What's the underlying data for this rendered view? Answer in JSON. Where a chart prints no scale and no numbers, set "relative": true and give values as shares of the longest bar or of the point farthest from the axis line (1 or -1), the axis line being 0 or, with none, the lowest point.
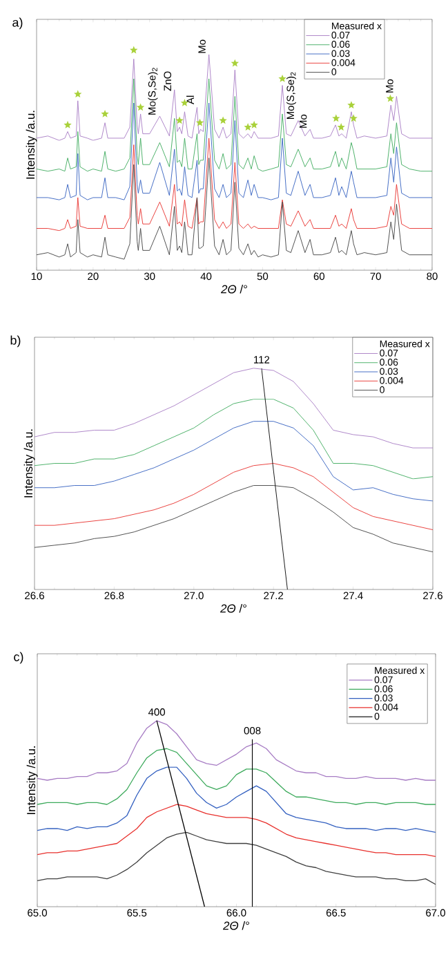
{
  "chart_data": [
    {
      "type": "line",
      "title": "a)",
      "xlabel": "*2Θ* /°",
      "ylabel": "Intensity /a.u.",
      "legend_title": "Measured x",
      "legend": "top right",
      "relative": true,
      "xlim": [
        10,
        80
      ],
      "xticks": [
        10,
        20,
        30,
        40,
        50,
        60,
        70,
        80
      ],
      "x": [
        10,
        12,
        14,
        15,
        15.5,
        16,
        17,
        17.3,
        17.7,
        19,
        20,
        21.5,
        22.1,
        22.6,
        24,
        25.5,
        26.5,
        27.2,
        27.8,
        28.0,
        28.4,
        28.8,
        30,
        31.8,
        33.5,
        34.4,
        34.9,
        35.3,
        35.7,
        36.2,
        36.8,
        37.5,
        38.4,
        38.7,
        39.0,
        39.5,
        40.5,
        41.5,
        42.3,
        43.0,
        43.6,
        44.4,
        45.1,
        45.8,
        46.6,
        47.4,
        48.0,
        48.5,
        49.2,
        50,
        51.5,
        52.8,
        53.5,
        54.2,
        55,
        56.3,
        57.5,
        58.4,
        59,
        60.5,
        62.0,
        62.9,
        63.5,
        64.0,
        64.8,
        65.7,
        66.1,
        66.7,
        68,
        70,
        72.0,
        72.7,
        73.2,
        73.7,
        74.6,
        76,
        78,
        80
      ],
      "series": [
        {
          "name": "0.07",
          "color": "#a77cc4",
          "values": [
            0.6,
            0.61,
            0.59,
            0.6,
            0.63,
            0.6,
            0.61,
            0.77,
            0.61,
            0.6,
            0.59,
            0.6,
            0.67,
            0.6,
            0.6,
            0.6,
            0.65,
            0.96,
            0.66,
            0.62,
            0.71,
            0.62,
            0.62,
            0.7,
            0.61,
            0.82,
            0.63,
            0.65,
            0.62,
            0.72,
            0.61,
            0.6,
            0.74,
            0.62,
            0.64,
            0.63,
            0.98,
            0.64,
            0.6,
            0.65,
            0.6,
            0.62,
            0.91,
            0.62,
            0.6,
            0.62,
            0.6,
            0.63,
            0.6,
            0.6,
            0.6,
            0.61,
            0.84,
            0.62,
            0.61,
            0.68,
            0.61,
            0.64,
            0.6,
            0.6,
            0.61,
            0.66,
            0.61,
            0.62,
            0.6,
            0.72,
            0.66,
            0.6,
            0.61,
            0.6,
            0.61,
            0.75,
            0.68,
            0.79,
            0.62,
            0.6,
            0.6,
            0.6
          ]
        },
        {
          "name": "0.06",
          "color": "#3daa5c",
          "values": [
            0.46,
            0.45,
            0.46,
            0.45,
            0.51,
            0.46,
            0.47,
            0.63,
            0.47,
            0.45,
            0.46,
            0.45,
            0.54,
            0.46,
            0.45,
            0.46,
            0.51,
            0.87,
            0.52,
            0.48,
            0.6,
            0.48,
            0.48,
            0.58,
            0.47,
            0.69,
            0.49,
            0.5,
            0.47,
            0.6,
            0.46,
            0.46,
            0.62,
            0.48,
            0.5,
            0.5,
            0.87,
            0.5,
            0.46,
            0.53,
            0.46,
            0.48,
            0.79,
            0.48,
            0.46,
            0.51,
            0.46,
            0.52,
            0.46,
            0.45,
            0.46,
            0.47,
            0.71,
            0.48,
            0.47,
            0.55,
            0.47,
            0.51,
            0.46,
            0.46,
            0.47,
            0.54,
            0.47,
            0.51,
            0.46,
            0.58,
            0.54,
            0.46,
            0.46,
            0.46,
            0.47,
            0.62,
            0.53,
            0.67,
            0.48,
            0.46,
            0.45,
            0.45
          ]
        },
        {
          "name": "0.03",
          "color": "#3360c0",
          "values": [
            0.33,
            0.33,
            0.32,
            0.33,
            0.39,
            0.33,
            0.34,
            0.53,
            0.34,
            0.32,
            0.33,
            0.33,
            0.42,
            0.33,
            0.33,
            0.32,
            0.38,
            0.76,
            0.39,
            0.35,
            0.41,
            0.35,
            0.35,
            0.49,
            0.34,
            0.55,
            0.36,
            0.37,
            0.34,
            0.47,
            0.34,
            0.33,
            0.5,
            0.35,
            0.37,
            0.37,
            0.76,
            0.37,
            0.33,
            0.39,
            0.33,
            0.35,
            0.68,
            0.35,
            0.33,
            0.41,
            0.34,
            0.39,
            0.33,
            0.33,
            0.32,
            0.33,
            0.6,
            0.35,
            0.34,
            0.45,
            0.34,
            0.39,
            0.33,
            0.33,
            0.34,
            0.42,
            0.34,
            0.38,
            0.33,
            0.45,
            0.4,
            0.33,
            0.33,
            0.33,
            0.34,
            0.51,
            0.4,
            0.56,
            0.35,
            0.33,
            0.33,
            0.33
          ]
        },
        {
          "name": "0.004",
          "color": "#e8302c",
          "values": [
            0.19,
            0.19,
            0.18,
            0.19,
            0.23,
            0.19,
            0.2,
            0.33,
            0.2,
            0.19,
            0.19,
            0.19,
            0.25,
            0.19,
            0.19,
            0.19,
            0.24,
            0.57,
            0.25,
            0.21,
            0.28,
            0.21,
            0.21,
            0.31,
            0.2,
            0.39,
            0.21,
            0.22,
            0.2,
            0.32,
            0.2,
            0.19,
            0.33,
            0.21,
            0.22,
            0.22,
            0.6,
            0.23,
            0.19,
            0.22,
            0.19,
            0.21,
            0.49,
            0.21,
            0.19,
            0.21,
            0.19,
            0.2,
            0.19,
            0.19,
            0.19,
            0.19,
            0.32,
            0.21,
            0.2,
            0.27,
            0.2,
            0.23,
            0.19,
            0.19,
            0.19,
            0.25,
            0.2,
            0.21,
            0.19,
            0.28,
            0.23,
            0.19,
            0.19,
            0.19,
            0.2,
            0.29,
            0.25,
            0.39,
            0.21,
            0.19,
            0.19,
            0.19
          ]
        },
        {
          "name": "0",
          "color": "#3f3f3f",
          "values": [
            0.07,
            0.08,
            0.06,
            0.07,
            0.12,
            0.06,
            0.08,
            0.23,
            0.08,
            0.06,
            0.07,
            0.06,
            0.15,
            0.07,
            0.06,
            0.05,
            0.12,
            0.48,
            0.13,
            0.09,
            0.19,
            0.09,
            0.09,
            0.2,
            0.07,
            0.29,
            0.09,
            0.11,
            0.08,
            0.22,
            0.07,
            0.07,
            0.33,
            0.1,
            0.1,
            0.11,
            0.51,
            0.11,
            0.07,
            0.14,
            0.07,
            0.09,
            0.4,
            0.1,
            0.07,
            0.12,
            0.07,
            0.09,
            0.06,
            0.07,
            0.06,
            0.07,
            0.31,
            0.09,
            0.08,
            0.18,
            0.08,
            0.14,
            0.07,
            0.07,
            0.08,
            0.15,
            0.08,
            0.09,
            0.07,
            0.18,
            0.12,
            0.07,
            0.08,
            0.07,
            0.08,
            0.22,
            0.14,
            0.3,
            0.09,
            0.07,
            0.07,
            0.07
          ]
        },
        {
          "type": "scatter",
          "marker": "star",
          "color": "#a9d13a",
          "x": [
            15.5,
            17.3,
            22.1,
            27.2,
            28.4,
            35.3,
            36.2,
            38.9,
            43.0,
            45.1,
            47.4,
            48.5,
            53.5,
            63.0,
            63.9,
            65.7,
            66.1,
            72.6
          ],
          "values": [
            0.66,
            0.8,
            0.71,
            1.0,
            0.74,
            0.68,
            0.76,
            0.67,
            0.68,
            0.94,
            0.65,
            0.66,
            0.87,
            0.69,
            0.65,
            0.75,
            0.69,
            0.78
          ]
        }
      ],
      "annotations": [
        {
          "text": "Mo(S,Se)$_{2}$",
          "x": 31.8,
          "y": 0.7
        },
        {
          "text": "ZnO",
          "x": 34.4,
          "y": 0.81
        },
        {
          "text": "Al",
          "x": 38.4,
          "y": 0.75
        },
        {
          "text": "Mo",
          "x": 40.5,
          "y": 0.98
        },
        {
          "text": "Mo(S,Se)$_{2}$",
          "x": 56.3,
          "y": 0.68
        },
        {
          "text": "Mo",
          "x": 58.4,
          "y": 0.64
        },
        {
          "text": "Mo",
          "x": 73.7,
          "y": 0.8
        }
      ]
    },
    {
      "type": "line",
      "title": "b)",
      "xlabel": "*2Θ* /°",
      "ylabel": "Intensity /a.u.",
      "legend_title": "Measured x",
      "legend": "top right",
      "relative": true,
      "xlim": [
        26.6,
        27.6
      ],
      "xticks": [
        {
          "value": 26.6,
          "label": "26.6"
        },
        {
          "value": 26.8,
          "label": "26.8"
        },
        {
          "value": 27,
          "label": "27.0"
        },
        {
          "value": 27.2,
          "label": "27.2"
        },
        {
          "value": 27.4,
          "label": "27.4"
        },
        {
          "value": 27.6,
          "label": "27.6"
        }
      ],
      "x": [
        26.6,
        26.65,
        26.7,
        26.75,
        26.8,
        26.85,
        26.9,
        26.95,
        27.0,
        27.05,
        27.1,
        27.15,
        27.2,
        27.25,
        27.3,
        27.35,
        27.4,
        27.45,
        27.5,
        27.55,
        27.6
      ],
      "series": [
        {
          "name": "0.07",
          "color": "#a77cc4",
          "values": [
            0.69,
            0.71,
            0.71,
            0.72,
            0.72,
            0.75,
            0.79,
            0.83,
            0.88,
            0.93,
            0.98,
            1.0,
            0.99,
            0.94,
            0.84,
            0.72,
            0.7,
            0.69,
            0.66,
            0.64,
            0.64
          ]
        },
        {
          "name": "0.06",
          "color": "#3daa5c",
          "values": [
            0.56,
            0.57,
            0.57,
            0.59,
            0.59,
            0.61,
            0.65,
            0.69,
            0.73,
            0.79,
            0.84,
            0.86,
            0.86,
            0.82,
            0.72,
            0.57,
            0.57,
            0.56,
            0.53,
            0.5,
            0.51
          ]
        },
        {
          "name": "0.03",
          "color": "#3360c0",
          "values": [
            0.46,
            0.46,
            0.47,
            0.47,
            0.49,
            0.52,
            0.55,
            0.59,
            0.63,
            0.68,
            0.73,
            0.76,
            0.76,
            0.73,
            0.65,
            0.51,
            0.45,
            0.46,
            0.43,
            0.41,
            0.4
          ]
        },
        {
          "name": "0.004",
          "color": "#e8302c",
          "values": [
            0.29,
            0.29,
            0.3,
            0.31,
            0.32,
            0.34,
            0.36,
            0.39,
            0.43,
            0.48,
            0.53,
            0.56,
            0.57,
            0.55,
            0.51,
            0.44,
            0.37,
            0.33,
            0.31,
            0.29,
            0.27
          ]
        },
        {
          "name": "0",
          "color": "#3f3f3f",
          "values": [
            0.19,
            0.2,
            0.21,
            0.23,
            0.24,
            0.26,
            0.29,
            0.32,
            0.36,
            0.4,
            0.44,
            0.47,
            0.47,
            0.46,
            0.41,
            0.35,
            0.28,
            0.25,
            0.21,
            0.19,
            0.17
          ]
        },
        {
          "type": "line",
          "color": "#000000",
          "x": [
            27.235,
            27.17
          ],
          "values": [
            0,
            1.0
          ]
        }
      ],
      "annotations": [
        {
          "text": "112",
          "x": 27.17,
          "y": 1.0
        }
      ]
    },
    {
      "type": "line",
      "title": "c)",
      "xlabel": "*2Θ* /°",
      "ylabel": "Intensity /a.u.",
      "legend_title": "Measured x",
      "legend": "top right",
      "relative": true,
      "xlim": [
        65,
        67
      ],
      "xticks": [
        {
          "value": 65,
          "label": "65.0"
        },
        {
          "value": 65.5,
          "label": "65.5"
        },
        {
          "value": 66,
          "label": "66.0"
        },
        {
          "value": 66.5,
          "label": "66.5"
        },
        {
          "value": 67,
          "label": "67.0"
        }
      ],
      "x": [
        65.0,
        65.05,
        65.1,
        65.15,
        65.2,
        65.25,
        65.3,
        65.35,
        65.4,
        65.45,
        65.5,
        65.55,
        65.6,
        65.65,
        65.7,
        65.75,
        65.8,
        65.85,
        65.9,
        65.95,
        66.0,
        66.05,
        66.1,
        66.15,
        66.2,
        66.25,
        66.3,
        66.35,
        66.4,
        66.45,
        66.5,
        66.55,
        66.6,
        66.65,
        66.7,
        66.75,
        66.8,
        66.85,
        66.9,
        66.95,
        67.0
      ],
      "series": [
        {
          "name": "0.07",
          "color": "#a77cc4",
          "values": [
            0.69,
            0.68,
            0.69,
            0.69,
            0.7,
            0.7,
            0.72,
            0.72,
            0.73,
            0.77,
            0.88,
            0.96,
            1.0,
            0.98,
            0.93,
            0.86,
            0.79,
            0.77,
            0.76,
            0.79,
            0.82,
            0.86,
            0.88,
            0.85,
            0.79,
            0.76,
            0.73,
            0.72,
            0.72,
            0.7,
            0.7,
            0.69,
            0.69,
            0.7,
            0.69,
            0.69,
            0.69,
            0.68,
            0.69,
            0.68,
            0.68
          ]
        },
        {
          "name": "0.06",
          "color": "#3daa5c",
          "values": [
            0.55,
            0.56,
            0.56,
            0.56,
            0.55,
            0.56,
            0.56,
            0.55,
            0.58,
            0.63,
            0.72,
            0.8,
            0.84,
            0.85,
            0.83,
            0.77,
            0.71,
            0.65,
            0.63,
            0.65,
            0.71,
            0.74,
            0.74,
            0.72,
            0.67,
            0.62,
            0.59,
            0.59,
            0.58,
            0.57,
            0.56,
            0.56,
            0.55,
            0.56,
            0.56,
            0.55,
            0.56,
            0.56,
            0.56,
            0.55,
            0.55
          ]
        },
        {
          "name": "0.03",
          "color": "#3360c0",
          "values": [
            0.41,
            0.42,
            0.42,
            0.41,
            0.43,
            0.42,
            0.43,
            0.43,
            0.45,
            0.49,
            0.6,
            0.69,
            0.73,
            0.75,
            0.75,
            0.69,
            0.61,
            0.56,
            0.53,
            0.55,
            0.59,
            0.62,
            0.65,
            0.62,
            0.56,
            0.5,
            0.48,
            0.47,
            0.46,
            0.45,
            0.43,
            0.42,
            0.42,
            0.42,
            0.41,
            0.42,
            0.42,
            0.41,
            0.42,
            0.41,
            0.4
          ]
        },
        {
          "name": "0.004",
          "color": "#e8302c",
          "values": [
            0.28,
            0.29,
            0.29,
            0.3,
            0.3,
            0.31,
            0.32,
            0.33,
            0.34,
            0.38,
            0.42,
            0.48,
            0.51,
            0.53,
            0.55,
            0.54,
            0.52,
            0.5,
            0.49,
            0.48,
            0.48,
            0.48,
            0.47,
            0.45,
            0.42,
            0.39,
            0.37,
            0.36,
            0.35,
            0.34,
            0.33,
            0.32,
            0.31,
            0.3,
            0.29,
            0.29,
            0.28,
            0.28,
            0.28,
            0.28,
            0.27
          ]
        },
        {
          "name": "0",
          "color": "#3f3f3f",
          "values": [
            0.14,
            0.15,
            0.15,
            0.16,
            0.16,
            0.16,
            0.16,
            0.15,
            0.17,
            0.2,
            0.24,
            0.29,
            0.33,
            0.37,
            0.39,
            0.4,
            0.38,
            0.36,
            0.35,
            0.34,
            0.34,
            0.34,
            0.33,
            0.31,
            0.29,
            0.27,
            0.24,
            0.22,
            0.21,
            0.19,
            0.18,
            0.17,
            0.16,
            0.16,
            0.16,
            0.15,
            0.15,
            0.14,
            0.14,
            0.15,
            0.12
          ]
        },
        {
          "type": "line",
          "color": "#000000",
          "x": [
            65.84,
            65.6
          ],
          "values": [
            0,
            1.0
          ]
        },
        {
          "type": "line",
          "color": "#000000",
          "x": [
            66.08,
            66.08
          ],
          "values": [
            0,
            0.9
          ]
        }
      ],
      "annotations": [
        {
          "text": "400",
          "x": 65.6,
          "y": 1.0
        },
        {
          "text": "008",
          "x": 66.08,
          "y": 0.9
        }
      ]
    }
  ]
}
